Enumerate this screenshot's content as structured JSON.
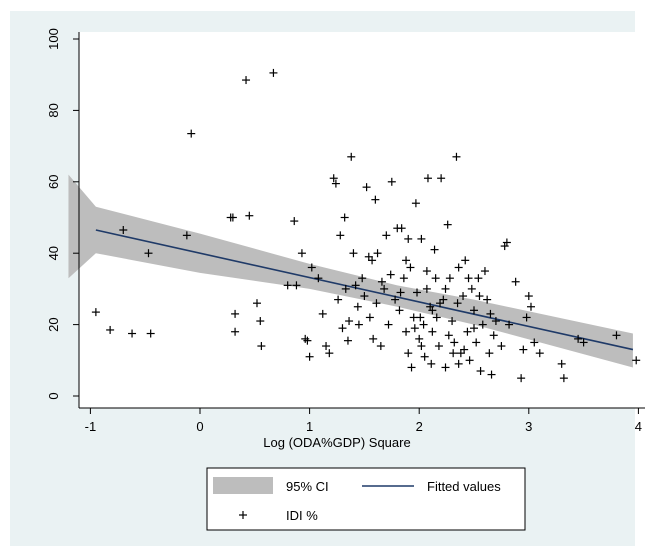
{
  "chart_data": {
    "type": "scatter",
    "title": "",
    "xlabel": "Log (ODA%GDP) Square",
    "ylabel": "",
    "xlim": [
      -1,
      4
    ],
    "ylim": [
      0,
      100
    ],
    "x_ticks": [
      -1,
      0,
      1,
      2,
      3,
      4
    ],
    "y_ticks": [
      0,
      20,
      40,
      60,
      80,
      100
    ],
    "grid": false,
    "legend": {
      "placement": "bottom",
      "entries": [
        "95% CI",
        "Fitted values",
        "IDI %"
      ]
    },
    "fit_line": {
      "x": [
        -0.95,
        3.95
      ],
      "y": [
        46.5,
        13
      ]
    },
    "ci_band": {
      "x": [
        -1.2,
        -0.95,
        0,
        1,
        1.8,
        2.5,
        3.95
      ],
      "upper": [
        62,
        53,
        45.5,
        37,
        31,
        27,
        17.5
      ],
      "lower": [
        33,
        40,
        34.5,
        30,
        25,
        20,
        8
      ]
    },
    "series": [
      {
        "name": "IDI %",
        "points": [
          [
            -0.95,
            23.5
          ],
          [
            -0.82,
            18.5
          ],
          [
            -0.7,
            46.5
          ],
          [
            -0.62,
            17.5
          ],
          [
            -0.47,
            40
          ],
          [
            -0.45,
            17.5
          ],
          [
            -0.12,
            45
          ],
          [
            -0.08,
            73.5
          ],
          [
            0.28,
            50
          ],
          [
            0.3,
            50
          ],
          [
            0.32,
            23
          ],
          [
            0.42,
            88.5
          ],
          [
            0.45,
            50.5
          ],
          [
            0.32,
            18
          ],
          [
            0.52,
            26
          ],
          [
            0.55,
            21
          ],
          [
            0.56,
            14
          ],
          [
            0.67,
            90.5
          ],
          [
            0.8,
            31
          ],
          [
            0.86,
            49
          ],
          [
            0.88,
            31
          ],
          [
            0.93,
            40
          ],
          [
            0.96,
            16
          ],
          [
            1.0,
            11
          ],
          [
            0.98,
            15.5
          ],
          [
            1.02,
            36
          ],
          [
            1.08,
            33
          ],
          [
            1.12,
            23
          ],
          [
            1.15,
            14
          ],
          [
            1.18,
            12
          ],
          [
            1.22,
            61
          ],
          [
            1.24,
            59.5
          ],
          [
            1.28,
            45
          ],
          [
            1.3,
            19
          ],
          [
            1.32,
            50
          ],
          [
            1.33,
            30
          ],
          [
            1.35,
            15.5
          ],
          [
            1.38,
            67
          ],
          [
            1.4,
            40
          ],
          [
            1.42,
            31
          ],
          [
            1.45,
            20
          ],
          [
            1.48,
            33
          ],
          [
            1.5,
            28
          ],
          [
            1.52,
            58.5
          ],
          [
            1.55,
            22
          ],
          [
            1.57,
            38
          ],
          [
            1.6,
            55
          ],
          [
            1.62,
            40
          ],
          [
            1.65,
            14
          ],
          [
            1.68,
            30
          ],
          [
            1.7,
            45
          ],
          [
            1.72,
            20
          ],
          [
            1.75,
            60
          ],
          [
            1.78,
            27
          ],
          [
            1.8,
            47
          ],
          [
            1.82,
            24
          ],
          [
            1.84,
            47
          ],
          [
            1.86,
            33
          ],
          [
            1.88,
            18
          ],
          [
            1.9,
            12
          ],
          [
            1.92,
            36
          ],
          [
            1.93,
            8
          ],
          [
            1.95,
            22
          ],
          [
            1.97,
            54
          ],
          [
            1.98,
            29
          ],
          [
            2.0,
            16
          ],
          [
            2.02,
            44
          ],
          [
            2.04,
            20
          ],
          [
            2.05,
            11
          ],
          [
            2.07,
            30
          ],
          [
            2.08,
            61
          ],
          [
            2.1,
            25
          ],
          [
            2.12,
            18
          ],
          [
            2.14,
            41
          ],
          [
            2.16,
            22
          ],
          [
            2.18,
            14
          ],
          [
            2.2,
            61
          ],
          [
            2.22,
            27
          ],
          [
            2.24,
            8
          ],
          [
            2.26,
            48
          ],
          [
            2.28,
            33
          ],
          [
            2.3,
            21
          ],
          [
            2.32,
            15
          ],
          [
            2.34,
            67
          ],
          [
            2.36,
            36
          ],
          [
            2.38,
            12
          ],
          [
            2.4,
            28
          ],
          [
            2.42,
            38
          ],
          [
            2.44,
            18
          ],
          [
            2.46,
            10
          ],
          [
            2.48,
            30
          ],
          [
            2.5,
            24
          ],
          [
            2.52,
            15
          ],
          [
            2.54,
            33
          ],
          [
            2.56,
            7
          ],
          [
            2.58,
            20
          ],
          [
            2.6,
            35
          ],
          [
            2.62,
            27
          ],
          [
            2.64,
            12
          ],
          [
            2.66,
            6
          ],
          [
            2.7,
            21
          ],
          [
            2.75,
            14
          ],
          [
            2.78,
            42
          ],
          [
            2.8,
            43
          ],
          [
            2.82,
            20
          ],
          [
            2.88,
            32
          ],
          [
            2.93,
            5
          ],
          [
            2.95,
            13
          ],
          [
            2.98,
            22
          ],
          [
            3.0,
            28
          ],
          [
            3.02,
            25
          ],
          [
            3.05,
            15
          ],
          [
            3.1,
            12
          ],
          [
            3.3,
            9
          ],
          [
            3.32,
            5
          ],
          [
            3.45,
            16
          ],
          [
            3.5,
            15
          ],
          [
            3.8,
            17
          ],
          [
            3.98,
            10
          ],
          [
            1.26,
            27
          ],
          [
            1.44,
            25
          ],
          [
            1.58,
            16
          ],
          [
            1.74,
            34
          ],
          [
            1.88,
            38
          ],
          [
            2.01,
            22
          ],
          [
            2.15,
            33
          ],
          [
            2.27,
            17
          ],
          [
            2.35,
            26
          ],
          [
            2.45,
            33
          ],
          [
            2.55,
            28
          ],
          [
            2.65,
            23
          ],
          [
            1.96,
            19
          ],
          [
            2.11,
            9
          ],
          [
            2.31,
            12
          ],
          [
            1.66,
            32
          ],
          [
            1.36,
            21
          ],
          [
            1.54,
            39
          ],
          [
            2.19,
            26
          ],
          [
            2.41,
            13
          ],
          [
            2.07,
            35
          ],
          [
            1.83,
            29
          ],
          [
            1.61,
            26
          ],
          [
            2.24,
            30
          ],
          [
            2.5,
            19
          ],
          [
            2.68,
            17
          ],
          [
            2.02,
            14
          ],
          [
            2.36,
            9
          ],
          [
            1.9,
            44
          ],
          [
            2.12,
            24
          ]
        ]
      }
    ]
  }
}
